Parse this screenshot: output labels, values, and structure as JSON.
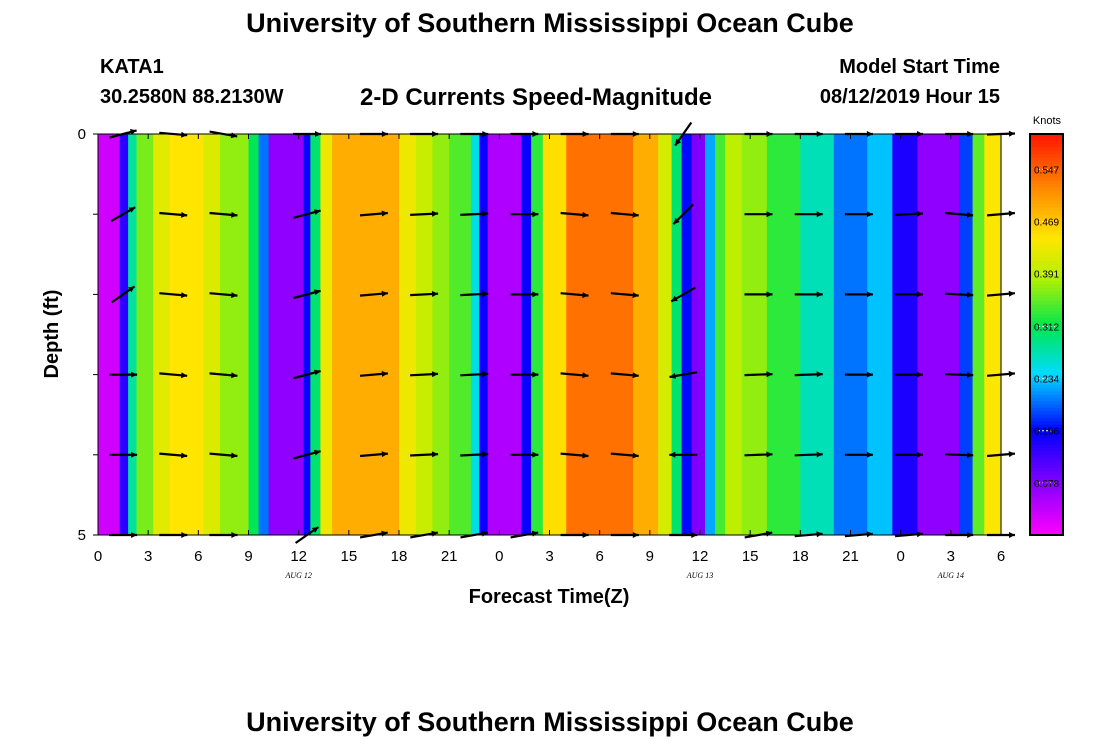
{
  "page": {
    "title": "University of Southern Mississippi Ocean Cube",
    "footer_title": "University of Southern Mississippi Ocean Cube"
  },
  "header": {
    "station": "KATA1",
    "coordinates": "30.2580N 88.2130W",
    "model_label": "Model Start Time",
    "model_time": "08/12/2019 Hour 15"
  },
  "chart_data": {
    "type": "heatmap",
    "title": "2-D Currents Speed-Magnitude",
    "xlabel": "Forecast Time(Z)",
    "ylabel": "Depth (ft)",
    "x_range_hours": [
      0,
      54
    ],
    "y_range": [
      0,
      5
    ],
    "x_tick_labels": [
      "0",
      "3",
      "6",
      "9",
      "12",
      "15",
      "18",
      "21",
      "0",
      "3",
      "6",
      "9",
      "12",
      "15",
      "18",
      "21",
      "0",
      "3",
      "6"
    ],
    "y_tick_labels": [
      {
        "value": 0,
        "label": "0"
      },
      {
        "value": 1,
        "label": ""
      },
      {
        "value": 2,
        "label": ""
      },
      {
        "value": 3,
        "label": ""
      },
      {
        "value": 4,
        "label": ""
      },
      {
        "value": 5,
        "label": "5"
      }
    ],
    "date_labels": [
      {
        "hour": 12,
        "label": "AUG 12"
      },
      {
        "hour": 36,
        "label": "AUG 13"
      },
      {
        "hour": 51,
        "label": "AUG 14"
      }
    ],
    "colorbar": {
      "unit": "Knots",
      "range": [
        0,
        0.6
      ],
      "ticks": [
        0.547,
        0.469,
        0.391,
        0.312,
        0.234,
        0.156,
        0.078
      ],
      "tick_labels": [
        "0.547",
        "0.469",
        "0.391",
        "0.312",
        "0.234",
        "0.156",
        "0.078"
      ]
    },
    "speed_columns": [
      {
        "t0": 0,
        "t1": 1.3,
        "v": 0.03
      },
      {
        "t0": 1.3,
        "t1": 1.8,
        "v": 0.13
      },
      {
        "t0": 1.8,
        "t1": 2.3,
        "v": 0.28
      },
      {
        "t0": 2.3,
        "t1": 3.3,
        "v": 0.36
      },
      {
        "t0": 3.3,
        "t1": 4.3,
        "v": 0.42
      },
      {
        "t0": 4.3,
        "t1": 6.3,
        "v": 0.445
      },
      {
        "t0": 6.3,
        "t1": 7.3,
        "v": 0.415
      },
      {
        "t0": 7.3,
        "t1": 9.0,
        "v": 0.37
      },
      {
        "t0": 9.0,
        "t1": 9.6,
        "v": 0.31
      },
      {
        "t0": 9.6,
        "t1": 10.2,
        "v": 0.2
      },
      {
        "t0": 10.2,
        "t1": 12.3,
        "v": 0.07
      },
      {
        "t0": 12.3,
        "t1": 12.7,
        "v": 0.15
      },
      {
        "t0": 12.7,
        "t1": 13.3,
        "v": 0.3
      },
      {
        "t0": 13.3,
        "t1": 14.0,
        "v": 0.43
      },
      {
        "t0": 14.0,
        "t1": 18.0,
        "v": 0.49
      },
      {
        "t0": 18.0,
        "t1": 19.0,
        "v": 0.43
      },
      {
        "t0": 19.0,
        "t1": 20.0,
        "v": 0.4
      },
      {
        "t0": 20.0,
        "t1": 21.0,
        "v": 0.37
      },
      {
        "t0": 21.0,
        "t1": 22.3,
        "v": 0.345
      },
      {
        "t0": 22.3,
        "t1": 22.8,
        "v": 0.25
      },
      {
        "t0": 22.8,
        "t1": 23.3,
        "v": 0.15
      },
      {
        "t0": 23.3,
        "t1": 25.3,
        "v": 0.05
      },
      {
        "t0": 25.3,
        "t1": 25.9,
        "v": 0.15
      },
      {
        "t0": 25.9,
        "t1": 26.6,
        "v": 0.33
      },
      {
        "t0": 26.6,
        "t1": 28.0,
        "v": 0.45
      },
      {
        "t0": 28.0,
        "t1": 32.0,
        "v": 0.535
      },
      {
        "t0": 32.0,
        "t1": 33.5,
        "v": 0.49
      },
      {
        "t0": 33.5,
        "t1": 34.3,
        "v": 0.41
      },
      {
        "t0": 34.3,
        "t1": 34.9,
        "v": 0.3
      },
      {
        "t0": 34.9,
        "t1": 35.5,
        "v": 0.16
      },
      {
        "t0": 35.5,
        "t1": 36.3,
        "v": 0.08
      },
      {
        "t0": 36.3,
        "t1": 36.9,
        "v": 0.22
      },
      {
        "t0": 36.9,
        "t1": 37.5,
        "v": 0.34
      },
      {
        "t0": 37.5,
        "t1": 38.5,
        "v": 0.39
      },
      {
        "t0": 38.5,
        "t1": 40.0,
        "v": 0.37
      },
      {
        "t0": 40.0,
        "t1": 42.0,
        "v": 0.33
      },
      {
        "t0": 42.0,
        "t1": 44.0,
        "v": 0.27
      },
      {
        "t0": 44.0,
        "t1": 46.0,
        "v": 0.2
      },
      {
        "t0": 46.0,
        "t1": 47.5,
        "v": 0.23
      },
      {
        "t0": 47.5,
        "t1": 49.0,
        "v": 0.14
      },
      {
        "t0": 49.0,
        "t1": 51.5,
        "v": 0.07
      },
      {
        "t0": 51.5,
        "t1": 52.3,
        "v": 0.18
      },
      {
        "t0": 52.3,
        "t1": 53.0,
        "v": 0.35
      },
      {
        "t0": 53.0,
        "t1": 54.0,
        "v": 0.44
      }
    ],
    "vector_columns": [
      {
        "hour": 1.5,
        "angles": [
          -15,
          -30,
          -35,
          0,
          0,
          0
        ]
      },
      {
        "hour": 4.5,
        "angles": [
          5,
          5,
          5,
          5,
          5,
          0
        ]
      },
      {
        "hour": 7.5,
        "angles": [
          10,
          5,
          5,
          5,
          5,
          0
        ]
      },
      {
        "hour": 12.5,
        "angles": [
          0,
          -15,
          -15,
          -15,
          -15,
          -35
        ]
      },
      {
        "hour": 16.5,
        "angles": [
          0,
          -5,
          -5,
          -5,
          -5,
          -10
        ]
      },
      {
        "hour": 19.5,
        "angles": [
          0,
          -3,
          -3,
          -3,
          -3,
          -10
        ]
      },
      {
        "hour": 22.5,
        "angles": [
          0,
          -3,
          -3,
          -3,
          -3,
          -10
        ]
      },
      {
        "hour": 25.5,
        "angles": [
          0,
          0,
          0,
          0,
          0,
          -10
        ]
      },
      {
        "hour": 28.5,
        "angles": [
          0,
          5,
          5,
          5,
          5,
          0
        ]
      },
      {
        "hour": 31.5,
        "angles": [
          0,
          5,
          5,
          5,
          5,
          0
        ]
      },
      {
        "hour": 35.0,
        "angles": [
          125,
          135,
          150,
          170,
          180,
          0
        ]
      },
      {
        "hour": 39.5,
        "angles": [
          0,
          0,
          0,
          -2,
          -2,
          -10
        ]
      },
      {
        "hour": 42.5,
        "angles": [
          0,
          0,
          0,
          -2,
          -2,
          -5
        ]
      },
      {
        "hour": 45.5,
        "angles": [
          0,
          0,
          0,
          0,
          0,
          -5
        ]
      },
      {
        "hour": 48.5,
        "angles": [
          0,
          -3,
          0,
          0,
          0,
          -5
        ]
      },
      {
        "hour": 51.5,
        "angles": [
          0,
          5,
          3,
          2,
          2,
          0
        ]
      },
      {
        "hour": 54.0,
        "angles": [
          -2,
          -5,
          -5,
          -5,
          -5,
          0
        ]
      }
    ]
  }
}
